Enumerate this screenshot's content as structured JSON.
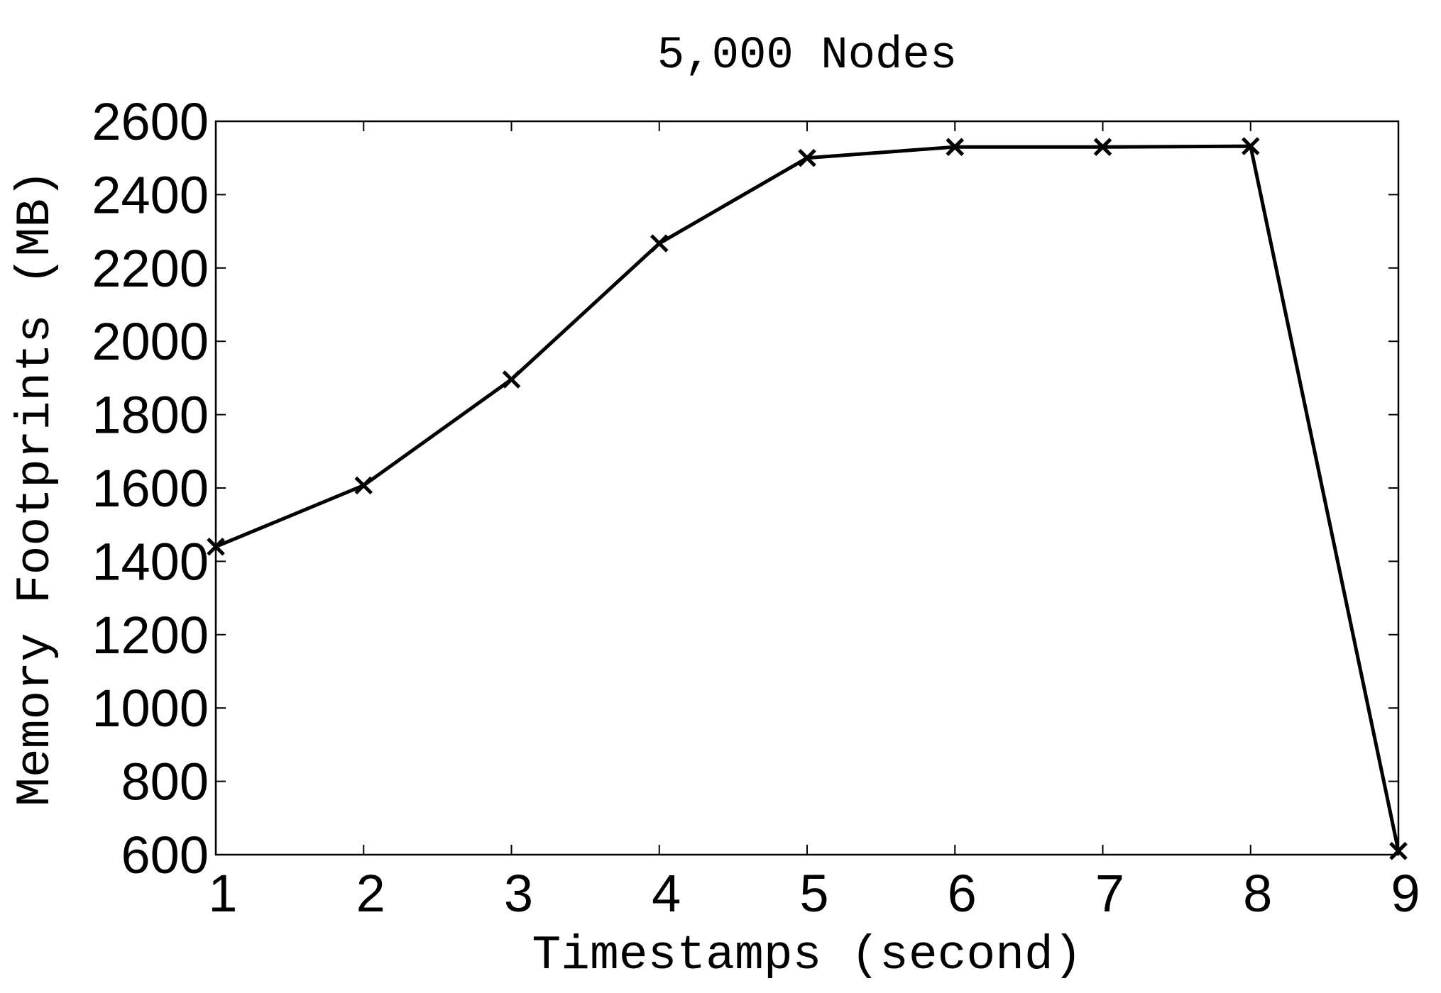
{
  "chart_data": {
    "type": "line",
    "title": "5,000 Nodes",
    "x_label": "Timestamps (second)",
    "y_label": "Memory Footprints (MB)",
    "x": [
      1,
      2,
      3,
      4,
      5,
      6,
      7,
      8,
      9
    ],
    "series": [
      {
        "color": "#000000",
        "marker": "x",
        "values": [
          1440,
          1607,
          1896,
          2267,
          2500,
          2530,
          2530,
          2532,
          610
        ]
      }
    ],
    "xlim": [
      1,
      9
    ],
    "xticks": [
      1,
      2,
      3,
      4,
      5,
      6,
      7,
      8,
      9
    ],
    "ylim": [
      600,
      2600
    ],
    "yticks": [
      600,
      800,
      1000,
      1200,
      1400,
      1600,
      1800,
      2000,
      2200,
      2400,
      2600
    ],
    "grid": false
  }
}
